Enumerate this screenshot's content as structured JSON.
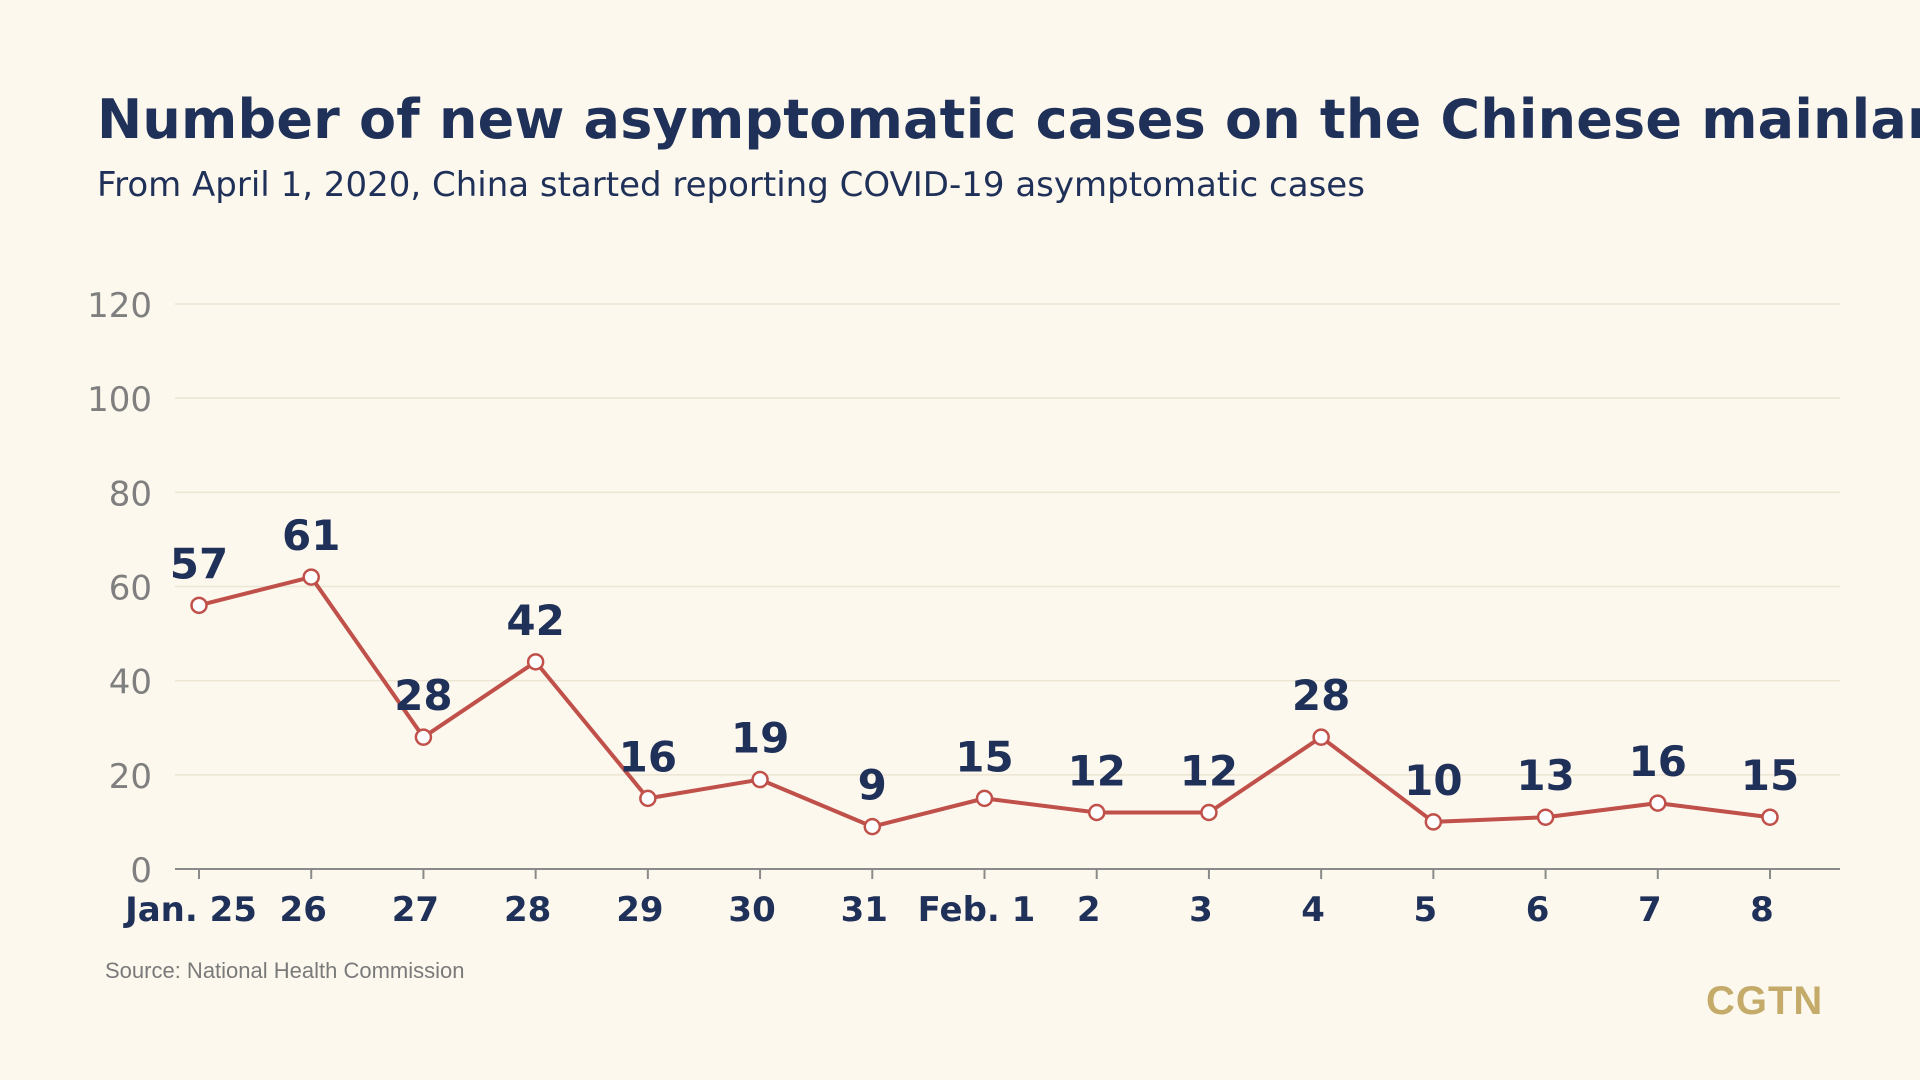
{
  "title": "Number of new asymptomatic cases on the Chinese mainland",
  "subtitle": "From April 1, 2020, China started reporting COVID-19 asymptomatic cases",
  "source": "Source: National Health Commission",
  "logo": "CGTN",
  "colors": {
    "background": "#fdf8ee",
    "title": "#1f3158",
    "line": "#c0504a",
    "axis_text": "#7f7f7f",
    "logo": "#c4ab6a"
  },
  "chart_data": {
    "type": "line",
    "categories": [
      "Jan. 25",
      "26",
      "27",
      "28",
      "29",
      "30",
      "31",
      "Feb. 1",
      "2",
      "3",
      "4",
      "5",
      "6",
      "7",
      "8"
    ],
    "series": [
      {
        "values": [
          57,
          61,
          28,
          42,
          16,
          19,
          9,
          15,
          12,
          12,
          28,
          10,
          13,
          16,
          15
        ],
        "plotted": [
          56,
          62,
          28,
          44,
          15,
          19,
          9,
          15,
          12,
          12,
          28,
          10,
          11,
          14,
          11
        ]
      }
    ],
    "ylim": [
      0,
      120
    ],
    "yticks": [
      0,
      20,
      40,
      60,
      80,
      100,
      120
    ],
    "grid": true,
    "legend": "none"
  }
}
